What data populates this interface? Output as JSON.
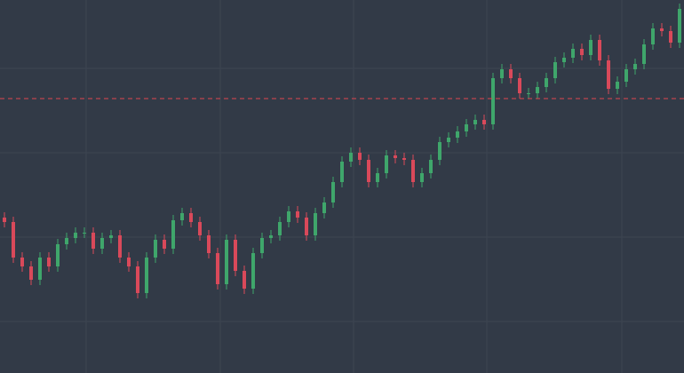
{
  "chart_data": {
    "type": "candlestick",
    "xlim": [
      -0.5,
      76.5
    ],
    "xticks": [
      9.2,
      24.3,
      39.3,
      54.3,
      69.5
    ],
    "ylim": [
      0,
      420
    ],
    "yticks": [
      58,
      153,
      248,
      343
    ],
    "grid": true,
    "up_color": "#3fa66b",
    "down_color": "#d9495a",
    "background": "#323a47",
    "grid_color": "#3d4552",
    "hline": {
      "value": 309,
      "color": "#e0454f",
      "dashed": true
    },
    "open": [
      175,
      170,
      130,
      120,
      105,
      130,
      120,
      145,
      152,
      158,
      158,
      140,
      152,
      155,
      130,
      120,
      90,
      130,
      150,
      140,
      172,
      180,
      170,
      155,
      135,
      100,
      150,
      115,
      95,
      135,
      152,
      155,
      170,
      182,
      175,
      155,
      180,
      192,
      215,
      238,
      248,
      240,
      215,
      225,
      245,
      242,
      240,
      215,
      225,
      240,
      260,
      265,
      272,
      280,
      285,
      280,
      332,
      342,
      332,
      315,
      315,
      322,
      332,
      350,
      355,
      365,
      358,
      375,
      352,
      320,
      328,
      342,
      348,
      370,
      388,
      385,
      372
    ],
    "high": [
      181,
      176,
      136,
      126,
      136,
      136,
      151,
      158,
      164,
      164,
      164,
      158,
      161,
      161,
      136,
      126,
      136,
      156,
      156,
      178,
      186,
      186,
      176,
      161,
      141,
      156,
      156,
      121,
      141,
      158,
      161,
      176,
      188,
      188,
      181,
      186,
      198,
      221,
      244,
      254,
      254,
      246,
      231,
      251,
      251,
      248,
      246,
      231,
      246,
      266,
      271,
      278,
      286,
      291,
      291,
      338,
      348,
      348,
      338,
      321,
      328,
      338,
      356,
      361,
      371,
      371,
      381,
      381,
      358,
      334,
      348,
      354,
      376,
      394,
      394,
      391,
      416
    ],
    "low": [
      164,
      124,
      114,
      99,
      99,
      114,
      114,
      139,
      146,
      152,
      134,
      134,
      146,
      124,
      114,
      84,
      84,
      124,
      134,
      134,
      166,
      164,
      149,
      129,
      94,
      94,
      109,
      89,
      89,
      129,
      146,
      149,
      164,
      169,
      149,
      149,
      174,
      186,
      209,
      232,
      234,
      209,
      209,
      219,
      236,
      234,
      209,
      209,
      219,
      234,
      254,
      259,
      266,
      274,
      274,
      274,
      326,
      326,
      309,
      309,
      309,
      316,
      326,
      344,
      349,
      352,
      352,
      346,
      314,
      314,
      322,
      336,
      342,
      364,
      379,
      366,
      366
    ],
    "close": [
      170,
      130,
      120,
      105,
      130,
      120,
      145,
      152,
      158,
      158,
      140,
      152,
      155,
      130,
      120,
      90,
      130,
      150,
      140,
      172,
      180,
      170,
      155,
      135,
      100,
      150,
      115,
      95,
      135,
      152,
      155,
      170,
      182,
      175,
      155,
      180,
      192,
      215,
      238,
      248,
      240,
      215,
      225,
      245,
      242,
      240,
      215,
      225,
      240,
      260,
      265,
      272,
      280,
      285,
      280,
      332,
      342,
      332,
      315,
      315,
      322,
      332,
      350,
      355,
      365,
      358,
      375,
      352,
      320,
      328,
      342,
      348,
      370,
      388,
      385,
      372,
      410
    ]
  }
}
